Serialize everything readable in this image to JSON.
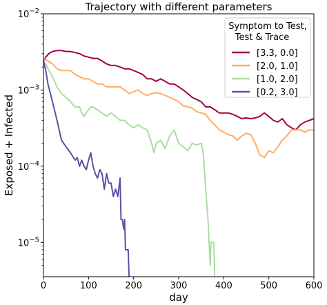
{
  "chart_data": {
    "type": "line",
    "title": "Trajectory with different parameters",
    "xlabel": "day",
    "ylabel": "Exposed + Infected",
    "xlim": [
      0,
      600
    ],
    "ylim_log10": [
      -5.45,
      -2
    ],
    "yscale": "log",
    "x_ticks": [
      0,
      100,
      200,
      300,
      400,
      500,
      600
    ],
    "y_tick_exponents": [
      -5,
      -4,
      -3,
      -2
    ],
    "grid": false,
    "legend": {
      "title_lines": [
        "Symptom to Test,",
        "Test & Trace"
      ],
      "placement": "top-right"
    },
    "series": [
      {
        "name": "[3.3, 0.0]",
        "color": "#9e0142",
        "points": [
          [
            0,
            0.0024
          ],
          [
            5,
            0.0027
          ],
          [
            12,
            0.003
          ],
          [
            20,
            0.0032
          ],
          [
            30,
            0.0033
          ],
          [
            40,
            0.0033
          ],
          [
            50,
            0.0032
          ],
          [
            60,
            0.0032
          ],
          [
            70,
            0.0031
          ],
          [
            80,
            0.003
          ],
          [
            90,
            0.0028
          ],
          [
            100,
            0.0027
          ],
          [
            110,
            0.0026
          ],
          [
            120,
            0.0026
          ],
          [
            130,
            0.0024
          ],
          [
            140,
            0.0022
          ],
          [
            150,
            0.0021
          ],
          [
            160,
            0.0021
          ],
          [
            170,
            0.002
          ],
          [
            180,
            0.0019
          ],
          [
            190,
            0.0019
          ],
          [
            200,
            0.0018
          ],
          [
            210,
            0.0017
          ],
          [
            220,
            0.0016
          ],
          [
            230,
            0.0014
          ],
          [
            240,
            0.0014
          ],
          [
            250,
            0.0013
          ],
          [
            260,
            0.0014
          ],
          [
            270,
            0.0013
          ],
          [
            280,
            0.0012
          ],
          [
            290,
            0.0012
          ],
          [
            300,
            0.0011
          ],
          [
            310,
            0.001
          ],
          [
            320,
            0.0009
          ],
          [
            330,
            0.0008
          ],
          [
            340,
            0.00075
          ],
          [
            350,
            0.0007
          ],
          [
            360,
            0.0006
          ],
          [
            370,
            0.0006
          ],
          [
            380,
            0.00055
          ],
          [
            390,
            0.0005
          ],
          [
            400,
            0.0005
          ],
          [
            410,
            0.0005
          ],
          [
            420,
            0.00048
          ],
          [
            430,
            0.00045
          ],
          [
            440,
            0.00042
          ],
          [
            450,
            0.00043
          ],
          [
            460,
            0.00042
          ],
          [
            470,
            0.00043
          ],
          [
            480,
            0.00045
          ],
          [
            490,
            0.0005
          ],
          [
            500,
            0.00045
          ],
          [
            510,
            0.0004
          ],
          [
            520,
            0.00038
          ],
          [
            530,
            0.00042
          ],
          [
            540,
            0.00035
          ],
          [
            550,
            0.00032
          ],
          [
            560,
            0.0003
          ],
          [
            570,
            0.00035
          ],
          [
            580,
            0.00038
          ],
          [
            590,
            0.0004
          ],
          [
            600,
            0.00042
          ]
        ]
      },
      {
        "name": "[2.0, 1.0]",
        "color": "#fdae61",
        "points": [
          [
            0,
            0.0026
          ],
          [
            10,
            0.0024
          ],
          [
            20,
            0.0022
          ],
          [
            30,
            0.0019
          ],
          [
            40,
            0.0018
          ],
          [
            50,
            0.0018
          ],
          [
            60,
            0.0018
          ],
          [
            70,
            0.0016
          ],
          [
            80,
            0.0015
          ],
          [
            90,
            0.0014
          ],
          [
            100,
            0.0014
          ],
          [
            110,
            0.0013
          ],
          [
            120,
            0.0012
          ],
          [
            130,
            0.0012
          ],
          [
            140,
            0.0011
          ],
          [
            150,
            0.0011
          ],
          [
            160,
            0.0011
          ],
          [
            170,
            0.0011
          ],
          [
            180,
            0.001
          ],
          [
            190,
            0.0009
          ],
          [
            200,
            0.00095
          ],
          [
            210,
            0.001
          ],
          [
            220,
            0.0009
          ],
          [
            230,
            0.00085
          ],
          [
            240,
            0.0009
          ],
          [
            250,
            0.00092
          ],
          [
            260,
            0.0009
          ],
          [
            270,
            0.00085
          ],
          [
            280,
            0.0008
          ],
          [
            290,
            0.00075
          ],
          [
            300,
            0.0007
          ],
          [
            310,
            0.00062
          ],
          [
            320,
            0.0006
          ],
          [
            330,
            0.00058
          ],
          [
            340,
            0.00052
          ],
          [
            350,
            0.0005
          ],
          [
            360,
            0.00048
          ],
          [
            370,
            0.0004
          ],
          [
            380,
            0.00035
          ],
          [
            390,
            0.0003
          ],
          [
            400,
            0.00028
          ],
          [
            410,
            0.00026
          ],
          [
            420,
            0.00025
          ],
          [
            430,
            0.00022
          ],
          [
            440,
            0.00025
          ],
          [
            450,
            0.00027
          ],
          [
            460,
            0.00026
          ],
          [
            470,
            0.0002
          ],
          [
            480,
            0.00014
          ],
          [
            490,
            0.00013
          ],
          [
            500,
            0.00016
          ],
          [
            510,
            0.00015
          ],
          [
            520,
            0.00018
          ],
          [
            530,
            0.00022
          ],
          [
            540,
            0.00025
          ],
          [
            550,
            0.0003
          ],
          [
            560,
            0.0003
          ],
          [
            570,
            0.0003
          ],
          [
            580,
            0.00028
          ],
          [
            590,
            0.0003
          ],
          [
            600,
            0.0003
          ]
        ]
      },
      {
        "name": "[1.0, 2.0]",
        "color": "#abdda4",
        "points": [
          [
            0,
            0.0024
          ],
          [
            5,
            0.0022
          ],
          [
            10,
            0.0019
          ],
          [
            20,
            0.0015
          ],
          [
            30,
            0.0011
          ],
          [
            40,
            0.0009
          ],
          [
            50,
            0.0008
          ],
          [
            60,
            0.0007
          ],
          [
            70,
            0.0006
          ],
          [
            80,
            0.0006
          ],
          [
            85,
            0.0005
          ],
          [
            90,
            0.00045
          ],
          [
            95,
            0.0005
          ],
          [
            100,
            0.00055
          ],
          [
            105,
            0.0006
          ],
          [
            110,
            0.0006
          ],
          [
            120,
            0.00055
          ],
          [
            130,
            0.0005
          ],
          [
            140,
            0.00045
          ],
          [
            150,
            0.0005
          ],
          [
            160,
            0.00045
          ],
          [
            170,
            0.0004
          ],
          [
            180,
            0.0004
          ],
          [
            190,
            0.00035
          ],
          [
            200,
            0.00032
          ],
          [
            210,
            0.00035
          ],
          [
            220,
            0.00032
          ],
          [
            230,
            0.0003
          ],
          [
            240,
            0.0002
          ],
          [
            245,
            0.00015
          ],
          [
            250,
            0.0002
          ],
          [
            260,
            0.00022
          ],
          [
            270,
            0.00017
          ],
          [
            280,
            0.00025
          ],
          [
            290,
            0.0003
          ],
          [
            300,
            0.0002
          ],
          [
            310,
            0.00018
          ],
          [
            320,
            0.00016
          ],
          [
            330,
            0.0002
          ],
          [
            340,
            0.00019
          ],
          [
            350,
            0.0002
          ],
          [
            355,
            0.00014
          ],
          [
            360,
            5e-05
          ],
          [
            365,
            2e-05
          ],
          [
            370,
            5e-06
          ],
          [
            372,
            1e-05
          ],
          [
            378,
            1e-05
          ],
          [
            380,
            3.5e-06
          ]
        ]
      },
      {
        "name": "[0.2, 3.0]",
        "color": "#5e4fa2",
        "points": [
          [
            0,
            0.0024
          ],
          [
            5,
            0.0018
          ],
          [
            10,
            0.0012
          ],
          [
            20,
            0.0007
          ],
          [
            30,
            0.0004
          ],
          [
            40,
            0.00022
          ],
          [
            50,
            0.00018
          ],
          [
            60,
            0.00015
          ],
          [
            70,
            0.00012
          ],
          [
            75,
            0.00013
          ],
          [
            80,
            0.0001
          ],
          [
            85,
            0.00012
          ],
          [
            90,
            0.0001
          ],
          [
            95,
            9e-05
          ],
          [
            100,
            0.00012
          ],
          [
            105,
            0.00015
          ],
          [
            110,
            0.0001
          ],
          [
            115,
            8e-05
          ],
          [
            120,
            7e-05
          ],
          [
            125,
            9e-05
          ],
          [
            130,
            8e-05
          ],
          [
            135,
            5e-05
          ],
          [
            140,
            8e-05
          ],
          [
            145,
            6e-05
          ],
          [
            150,
            6e-05
          ],
          [
            155,
            4e-05
          ],
          [
            160,
            5e-05
          ],
          [
            165,
            4e-05
          ],
          [
            170,
            7e-05
          ],
          [
            172,
            2e-05
          ],
          [
            175,
            2e-05
          ],
          [
            178,
            1.5e-05
          ],
          [
            180,
            2e-05
          ],
          [
            182,
            8e-06
          ],
          [
            185,
            8e-06
          ],
          [
            188,
            8e-06
          ],
          [
            190,
            3.5e-06
          ]
        ]
      }
    ]
  }
}
